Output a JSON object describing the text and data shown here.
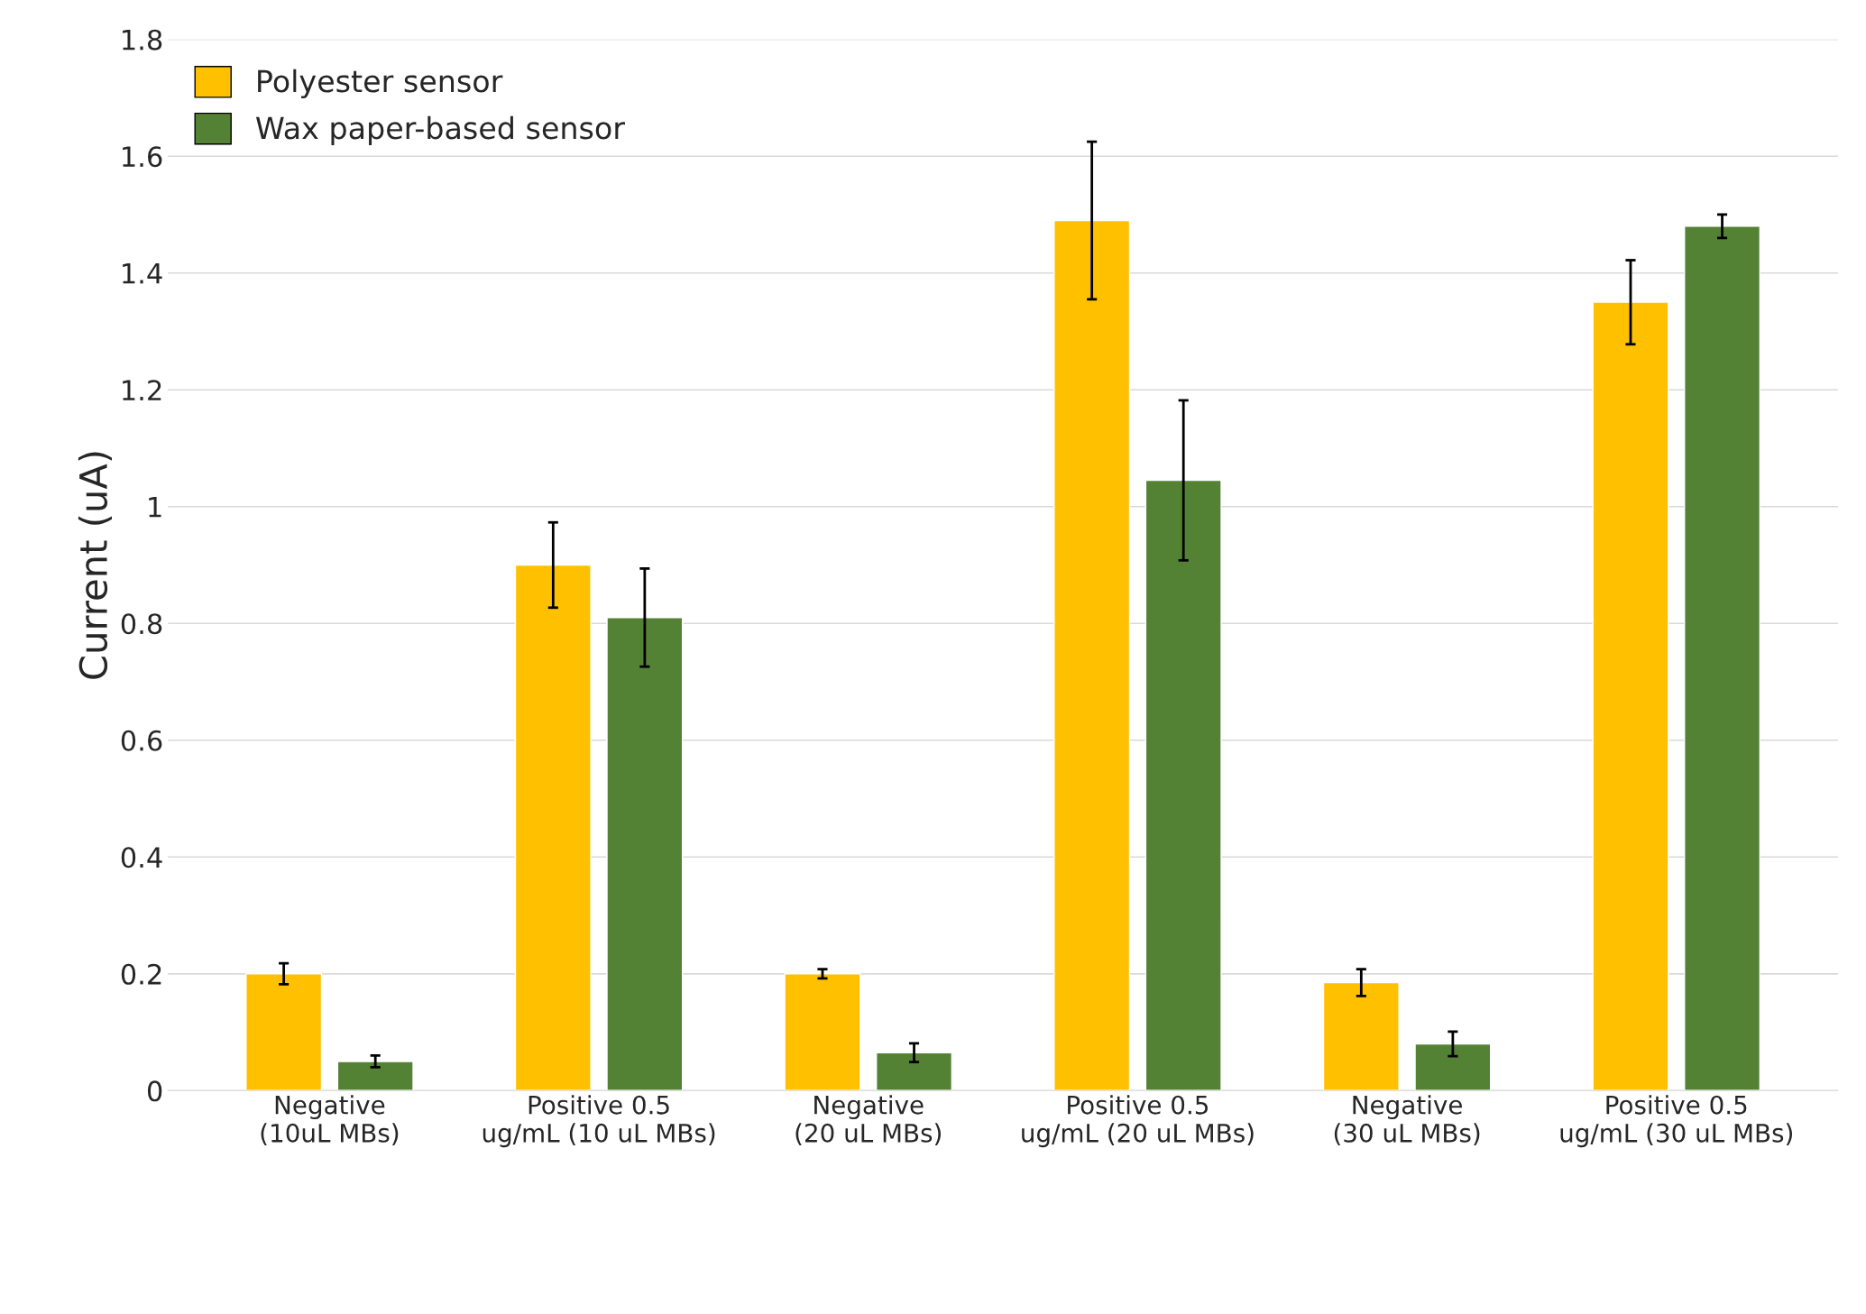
{
  "chart_data": {
    "type": "bar",
    "ylabel": "Current (uA)",
    "categories": [
      "Negative (10uL MBs)",
      "Positive 0.5 ug/mL (10 uL MBs)",
      "Negative (20 uL MBs)",
      "Positive 0.5 ug/mL (20 uL MBs)",
      "Negative (30 uL MBs)",
      "Positive 0.5 ug/mL (30 uL MBs)"
    ],
    "series": [
      {
        "name": "Polyester sensor",
        "color": "#ffc000",
        "values": [
          0.2,
          0.9,
          0.2,
          1.49,
          0.185,
          1.35
        ],
        "errors": [
          0.018,
          0.073,
          0.008,
          0.135,
          0.023,
          0.072
        ]
      },
      {
        "name": "Wax paper-based sensor",
        "color": "#548235",
        "values": [
          0.05,
          0.81,
          0.065,
          1.045,
          0.08,
          1.48
        ],
        "errors": [
          0.01,
          0.084,
          0.016,
          0.137,
          0.021,
          0.02
        ]
      }
    ],
    "ylim": [
      0,
      1.8
    ],
    "yticks": [
      0,
      0.2,
      0.4,
      0.6,
      0.8,
      1,
      1.2,
      1.4,
      1.6,
      1.8
    ],
    "grid": "y",
    "legend": "top left"
  }
}
